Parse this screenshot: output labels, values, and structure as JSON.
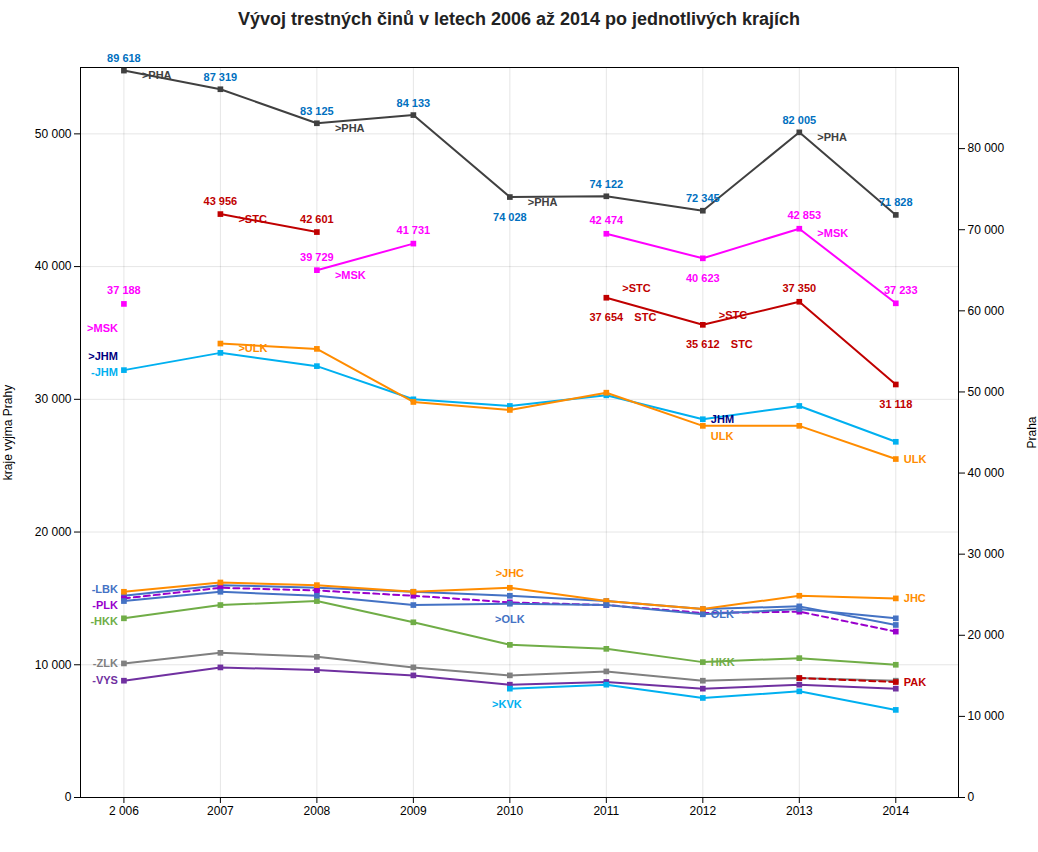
{
  "chart_data": {
    "type": "line",
    "title": "Vývoj trestných činů v letech 2006 až 2014 po jednotlivých krajích",
    "x": [
      2006,
      2007,
      2008,
      2009,
      2010,
      2011,
      2012,
      2013,
      2014
    ],
    "xlim": [
      2005.55,
      2014.65
    ],
    "xticks": [
      {
        "value": 2006,
        "label": "2 006"
      },
      2007,
      2008,
      2009,
      2010,
      2011,
      2012,
      2013,
      2014
    ],
    "ylim": [
      0,
      55000
    ],
    "yticks": [
      0,
      {
        "value": 10000,
        "label": "10 000"
      },
      {
        "value": 20000,
        "label": "20 000"
      },
      {
        "value": 30000,
        "label": "30 000"
      },
      {
        "value": 40000,
        "label": "40 000"
      },
      {
        "value": 50000,
        "label": "50 000"
      }
    ],
    "y2lim": [
      0,
      90000
    ],
    "y2ticks": [
      0,
      {
        "value": 10000,
        "label": "10 000"
      },
      {
        "value": 20000,
        "label": "20 000"
      },
      {
        "value": 30000,
        "label": "30 000"
      },
      {
        "value": 40000,
        "label": "40 000"
      },
      {
        "value": 50000,
        "label": "50 000"
      },
      {
        "value": 60000,
        "label": "60 000"
      },
      {
        "value": 70000,
        "label": "70 000"
      },
      {
        "value": 80000,
        "label": "80 000"
      }
    ],
    "ylabel": "kraje vyjma Prahy",
    "y2label": "Praha",
    "grid": true,
    "series": [
      {
        "name": "PHA",
        "color": "#404040",
        "axis": "y2",
        "marker": "square",
        "line_style": "solid",
        "values": [
          89618,
          87319,
          83125,
          84133,
          74028,
          74122,
          72345,
          82005,
          71828
        ]
      },
      {
        "name": "JHM",
        "color": "#00B0F0",
        "marker": "square",
        "line_style": "solid",
        "values": [
          32200,
          33500,
          32500,
          30000,
          29500,
          30300,
          28500,
          29500,
          26800
        ]
      },
      {
        "name": "ULK",
        "color": "#FF8C00",
        "marker": "square",
        "line_style": "solid",
        "values": [
          null,
          34200,
          33800,
          29800,
          29200,
          30500,
          28000,
          28000,
          25500
        ]
      },
      {
        "name": "LBK",
        "color": "#4472C4",
        "marker": "square",
        "line_style": "solid",
        "values": [
          15200,
          16000,
          15800,
          15500,
          15200,
          14800,
          14200,
          14400,
          13000
        ]
      },
      {
        "name": "PLK",
        "color": "#9900CC",
        "marker": "square",
        "line_style": "dashed",
        "values": [
          15000,
          15800,
          15600,
          15200,
          14700,
          14500,
          13900,
          14000,
          12500
        ]
      },
      {
        "name": "HKK",
        "color": "#70AD47",
        "marker": "square",
        "line_style": "solid",
        "values": [
          13500,
          14500,
          14800,
          13200,
          11500,
          11200,
          10200,
          10500,
          10000
        ]
      },
      {
        "name": "ZLK",
        "color": "#808080",
        "marker": "square",
        "line_style": "solid",
        "values": [
          10100,
          10900,
          10600,
          9800,
          9200,
          9500,
          8800,
          9000,
          8800
        ]
      },
      {
        "name": "VYS",
        "color": "#7030A0",
        "marker": "square",
        "line_style": "solid",
        "values": [
          8800,
          9800,
          9600,
          9200,
          8500,
          8700,
          8200,
          8500,
          8200
        ]
      },
      {
        "name": "JHC",
        "color": "#FF8C00",
        "marker": "square",
        "line_style": "solid",
        "values": [
          15500,
          16200,
          16000,
          15500,
          15800,
          14800,
          14200,
          15200,
          15000
        ]
      },
      {
        "name": "OLK",
        "color": "#4472C4",
        "marker": "square",
        "line_style": "solid",
        "values": [
          14800,
          15500,
          15200,
          14500,
          14600,
          14500,
          13800,
          14200,
          13500
        ]
      },
      {
        "name": "KVK",
        "color": "#00B0F0",
        "marker": "square",
        "line_style": "solid",
        "values": [
          null,
          null,
          null,
          null,
          8200,
          8500,
          7500,
          8000,
          6600
        ]
      },
      {
        "name": "PAK",
        "color": "#C00000",
        "marker": "square",
        "line_style": "dashed",
        "values": [
          null,
          null,
          null,
          null,
          null,
          null,
          null,
          9000,
          8700
        ]
      },
      {
        "name": "MSK",
        "color": "#FF00FF",
        "marker": "square",
        "line_style": "solid",
        "values": [
          37188,
          null,
          39729,
          41731,
          null,
          42474,
          40623,
          42853,
          37233
        ]
      },
      {
        "name": "STC",
        "color": "#C00000",
        "marker": "square",
        "line_style": "solid",
        "values": [
          null,
          43956,
          42601,
          null,
          null,
          37654,
          35612,
          37350,
          31118
        ]
      }
    ],
    "annotations": [
      {
        "text": "89 618",
        "series": "PHA",
        "x": 2006,
        "color": "#0070C0"
      },
      {
        "text": "87 319",
        "series": "PHA",
        "x": 2007,
        "color": "#0070C0"
      },
      {
        "text": "83 125",
        "series": "PHA",
        "x": 2008,
        "color": "#0070C0"
      },
      {
        "text": "84 133",
        "series": "PHA",
        "x": 2009,
        "color": "#0070C0"
      },
      {
        "text": "74 028",
        "series": "PHA",
        "x": 2010,
        "color": "#0070C0"
      },
      {
        "text": "74 122",
        "series": "PHA",
        "x": 2011,
        "color": "#0070C0"
      },
      {
        "text": "72 345",
        "series": "PHA",
        "x": 2012,
        "color": "#0070C0"
      },
      {
        "text": "82 005",
        "series": "PHA",
        "x": 2013,
        "color": "#0070C0"
      },
      {
        "text": "71 828",
        "series": "PHA",
        "x": 2014,
        "color": "#0070C0"
      },
      {
        "text": ">PHA",
        "series": "PHA",
        "x": 2006,
        "color": "#404040"
      },
      {
        "text": ">PHA",
        "series": "PHA",
        "x": 2008,
        "color": "#404040"
      },
      {
        "text": ">PHA",
        "series": "PHA",
        "x": 2010,
        "color": "#404040"
      },
      {
        "text": ">PHA",
        "series": "PHA",
        "x": 2013,
        "color": "#404040"
      },
      {
        "text": "43 956",
        "series": "STC",
        "x": 2007,
        "color": "#C00000"
      },
      {
        "text": "42 601",
        "series": "STC",
        "x": 2008,
        "color": "#C00000"
      },
      {
        "text": "37 654",
        "series": "STC",
        "x": 2011,
        "color": "#C00000"
      },
      {
        "text": "35 612",
        "series": "STC",
        "x": 2012,
        "color": "#C00000"
      },
      {
        "text": "37 350",
        "series": "STC",
        "x": 2013,
        "color": "#C00000"
      },
      {
        "text": "31 118",
        "series": "STC",
        "x": 2014,
        "color": "#C00000"
      },
      {
        "text": ">STC",
        "series": "STC",
        "x": 2007,
        "color": "#C00000"
      },
      {
        "text": ">STC",
        "series": "STC",
        "x": 2011,
        "color": "#C00000"
      },
      {
        "text": ">STC",
        "series": "STC",
        "x": 2012,
        "color": "#C00000"
      },
      {
        "text": "STC",
        "series": "STC",
        "x": 2011,
        "color": "#C00000"
      },
      {
        "text": "STC",
        "series": "STC",
        "x": 2012,
        "color": "#C00000"
      },
      {
        "text": "37 188",
        "series": "MSK",
        "x": 2006,
        "color": "#FF00FF"
      },
      {
        "text": "39 729",
        "series": "MSK",
        "x": 2008,
        "color": "#FF00FF"
      },
      {
        "text": "41 731",
        "series": "MSK",
        "x": 2009,
        "color": "#FF00FF"
      },
      {
        "text": "42 474",
        "series": "MSK",
        "x": 2011,
        "color": "#FF00FF"
      },
      {
        "text": "40 623",
        "series": "MSK",
        "x": 2012,
        "color": "#FF00FF"
      },
      {
        "text": "42 853",
        "series": "MSK",
        "x": 2013,
        "color": "#FF00FF"
      },
      {
        "text": "37 233",
        "series": "MSK",
        "x": 2014,
        "color": "#FF00FF"
      },
      {
        "text": ">MSK",
        "series": "MSK",
        "x": 2006,
        "color": "#FF00FF"
      },
      {
        "text": ">MSK",
        "series": "MSK",
        "x": 2008,
        "color": "#FF00FF"
      },
      {
        "text": ">MSK",
        "series": "MSK",
        "x": 2013,
        "color": "#FF00FF"
      },
      {
        "text": ">JHM",
        "series": "JHM",
        "x": 2006,
        "color": "#000080"
      },
      {
        "text": "JHM",
        "series": "JHM",
        "x": 2012,
        "color": "#000080"
      },
      {
        "text": ">ULK",
        "series": "ULK",
        "x": 2007,
        "color": "#FF8C00"
      },
      {
        "text": "ULK",
        "series": "ULK",
        "x": 2012,
        "color": "#FF8C00"
      },
      {
        "text": "ULK",
        "series": "ULK",
        "x": 2014,
        "color": "#FF8C00"
      },
      {
        "text": ">JHC",
        "series": "JHC",
        "x": 2010,
        "color": "#FF8C00"
      },
      {
        "text": ">OLK",
        "series": "OLK",
        "x": 2010,
        "color": "#4472C4"
      },
      {
        "text": "OLK",
        "series": "OLK",
        "x": 2012,
        "color": "#4472C4"
      },
      {
        "text": "JHC",
        "series": "JHC",
        "x": 2014,
        "color": "#FF8C00"
      },
      {
        "text": "HKK",
        "series": "HKK",
        "x": 2012,
        "color": "#70AD47"
      },
      {
        "text": ">KVK",
        "series": "KVK",
        "x": 2010,
        "color": "#00B0F0"
      },
      {
        "text": "PAK",
        "series": "PAK",
        "x": 2014,
        "color": "#C00000"
      },
      {
        "text": "-LBK",
        "series": "LBK",
        "x": 2006,
        "color": "#4472C4"
      },
      {
        "text": "-PLK",
        "series": "PLK",
        "x": 2006,
        "color": "#9900CC"
      },
      {
        "text": "-HKK",
        "series": "HKK",
        "x": 2006,
        "color": "#70AD47"
      },
      {
        "text": "-ZLK",
        "series": "ZLK",
        "x": 2006,
        "color": "#808080"
      },
      {
        "text": "-VYS",
        "series": "VYS",
        "x": 2006,
        "color": "#7030A0"
      },
      {
        "text": "-JHM",
        "series": "JHM",
        "x": 2006,
        "color": "#00B0F0"
      }
    ]
  }
}
